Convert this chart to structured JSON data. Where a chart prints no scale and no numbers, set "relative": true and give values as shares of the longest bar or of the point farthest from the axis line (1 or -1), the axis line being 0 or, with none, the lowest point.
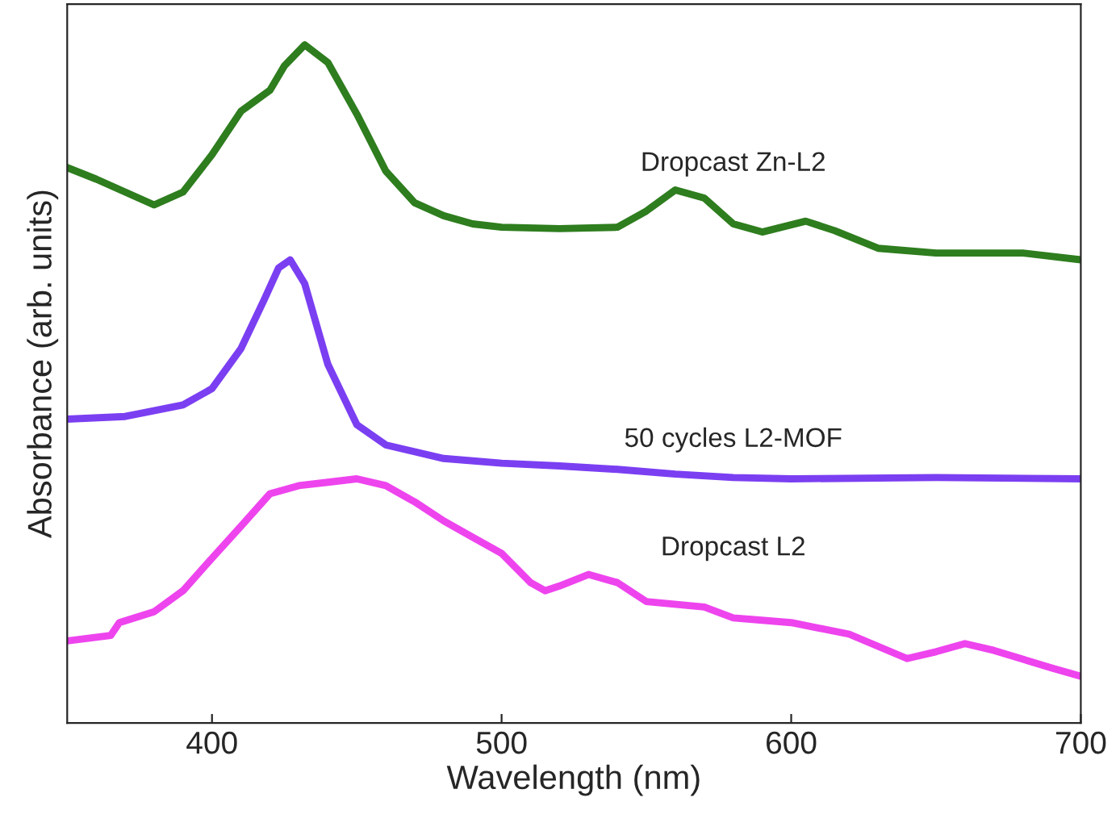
{
  "chart_data": {
    "type": "line",
    "relative": true,
    "xlabel": "Wavelength (nm)",
    "ylabel": "Absorbance (arb. units)",
    "xlim": [
      350,
      700
    ],
    "xticks": [
      400,
      500,
      600,
      700
    ],
    "legend": false,
    "grid": false,
    "series": [
      {
        "name": "Dropcast Zn-L2",
        "color": "#2e7d1e",
        "x": [
          350,
          360,
          370,
          380,
          390,
          400,
          410,
          420,
          425,
          432,
          440,
          450,
          460,
          470,
          480,
          490,
          500,
          520,
          540,
          550,
          560,
          570,
          580,
          590,
          605,
          615,
          630,
          650,
          680,
          700
        ],
        "values": [
          0.819,
          0.802,
          0.783,
          0.764,
          0.783,
          0.838,
          0.902,
          0.933,
          0.969,
          1.0,
          0.974,
          0.898,
          0.814,
          0.767,
          0.748,
          0.736,
          0.731,
          0.729,
          0.731,
          0.755,
          0.786,
          0.774,
          0.736,
          0.724,
          0.74,
          0.726,
          0.7,
          0.693,
          0.693,
          0.683
        ]
      },
      {
        "name": "50 cycles L2-MOF",
        "color": "#7b3ff2",
        "x": [
          350,
          370,
          390,
          400,
          410,
          418,
          423,
          427,
          432,
          440,
          450,
          460,
          480,
          500,
          520,
          540,
          560,
          580,
          600,
          650,
          700
        ],
        "values": [
          0.448,
          0.452,
          0.469,
          0.493,
          0.552,
          0.624,
          0.671,
          0.683,
          0.648,
          0.529,
          0.44,
          0.41,
          0.39,
          0.383,
          0.379,
          0.374,
          0.367,
          0.362,
          0.36,
          0.362,
          0.36
        ]
      },
      {
        "name": "Dropcast L2",
        "color": "#ee44ee",
        "x": [
          350,
          365,
          368,
          380,
          390,
          400,
          410,
          420,
          430,
          440,
          450,
          460,
          470,
          480,
          490,
          500,
          510,
          515,
          520,
          530,
          540,
          550,
          570,
          580,
          600,
          620,
          640,
          650,
          660,
          670,
          690,
          700
        ],
        "values": [
          0.121,
          0.129,
          0.148,
          0.164,
          0.195,
          0.243,
          0.29,
          0.338,
          0.35,
          0.355,
          0.36,
          0.35,
          0.326,
          0.298,
          0.274,
          0.25,
          0.207,
          0.195,
          0.202,
          0.219,
          0.207,
          0.179,
          0.171,
          0.155,
          0.148,
          0.131,
          0.095,
          0.105,
          0.117,
          0.107,
          0.081,
          0.069
        ]
      }
    ]
  }
}
